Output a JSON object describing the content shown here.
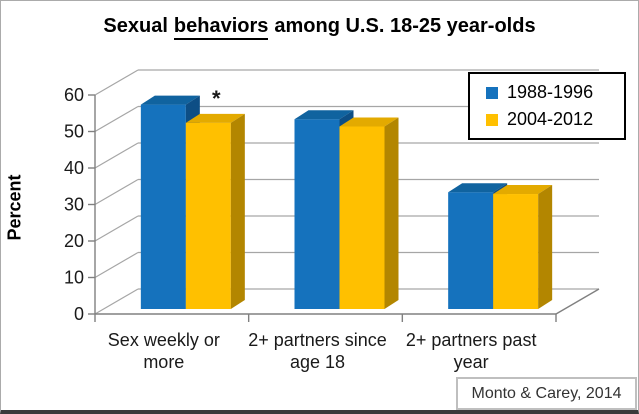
{
  "title": {
    "part1": "Sexual",
    "part2": "behaviors",
    "part3": "among U.S. 18-25 year-olds"
  },
  "y_axis_label": "Percent",
  "legend": {
    "items": [
      {
        "label": "1988-1996",
        "color": "#1572BD"
      },
      {
        "label": "2004-2012",
        "color": "#FFC000"
      }
    ]
  },
  "annotation": {
    "text": "*",
    "category_index": 0,
    "series_index": 1
  },
  "source": "Monto & Carey, 2014",
  "chart_data": {
    "type": "bar",
    "projection": "3d-clustered-column",
    "title": "Sexual behaviors among U.S. 18-25 year-olds",
    "ylabel": "Percent",
    "ylim": [
      0,
      60
    ],
    "ytick_step": 10,
    "grid": true,
    "legend_position": "top-right",
    "categories": [
      "Sex weekly or more",
      "2+ partners since age 18",
      "2+ partners past year"
    ],
    "category_label_lines": [
      [
        "Sex weekly or",
        "more"
      ],
      [
        "2+ partners since",
        "age 18"
      ],
      [
        "2+ partners past",
        "year"
      ]
    ],
    "series": [
      {
        "name": "1988-1996",
        "values": [
          56,
          52,
          32
        ],
        "color_front": "#1572BD",
        "color_top": "#10639F",
        "color_side": "#0D4E85"
      },
      {
        "name": "2004-2012",
        "values": [
          51,
          50,
          31.5
        ],
        "color_front": "#FFC000",
        "color_top": "#E3AA00",
        "color_side": "#B38600"
      }
    ],
    "annotations": [
      {
        "text": "*",
        "category_index": 0,
        "series_index": 1,
        "meaning": "significant difference marker"
      }
    ],
    "colors": {
      "gridline": "#a6a6a6",
      "axis": "#808080",
      "tick_text": "#1a1a1a",
      "category_text": "#262626"
    }
  }
}
